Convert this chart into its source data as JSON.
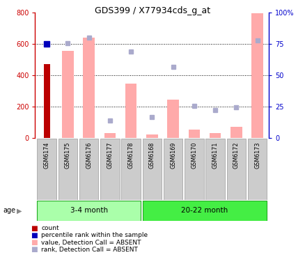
{
  "title": "GDS399 / X77934cds_g_at",
  "categories": [
    "GSM6174",
    "GSM6175",
    "GSM6176",
    "GSM6177",
    "GSM6178",
    "GSM6168",
    "GSM6169",
    "GSM6170",
    "GSM6171",
    "GSM6172",
    "GSM6173"
  ],
  "pink_bar_values": [
    0,
    555,
    640,
    28,
    345,
    22,
    245,
    50,
    30,
    68,
    795
  ],
  "blue_square_values": [
    600,
    605,
    640,
    110,
    550,
    130,
    455,
    205,
    175,
    195,
    625
  ],
  "count_bar_idx": 0,
  "count_bar_value": 470,
  "percentile_dot_idx": 0,
  "percentile_dot_value": 600,
  "ylim_left": [
    0,
    800
  ],
  "ylim_right": [
    0,
    100
  ],
  "yticks_left": [
    0,
    200,
    400,
    600,
    800
  ],
  "yticks_right": [
    0,
    25,
    50,
    75,
    100
  ],
  "yticklabels_right": [
    "0",
    "25",
    "50",
    "75",
    "100%"
  ],
  "group1_label": "3-4 month",
  "group2_label": "20-22 month",
  "group1_indices": [
    0,
    1,
    2,
    3,
    4
  ],
  "group2_indices": [
    5,
    6,
    7,
    8,
    9,
    10
  ],
  "age_label": "age",
  "legend_items": [
    {
      "label": "count",
      "color": "#bb0000"
    },
    {
      "label": "percentile rank within the sample",
      "color": "#0000bb"
    },
    {
      "label": "value, Detection Call = ABSENT",
      "color": "#ffaaaa"
    },
    {
      "label": "rank, Detection Call = ABSENT",
      "color": "#aaaacc"
    }
  ],
  "left_axis_color": "#cc0000",
  "right_axis_color": "#0000cc",
  "group1_bg": "#aaffaa",
  "group2_bg": "#44ee44",
  "tick_bg": "#cccccc"
}
